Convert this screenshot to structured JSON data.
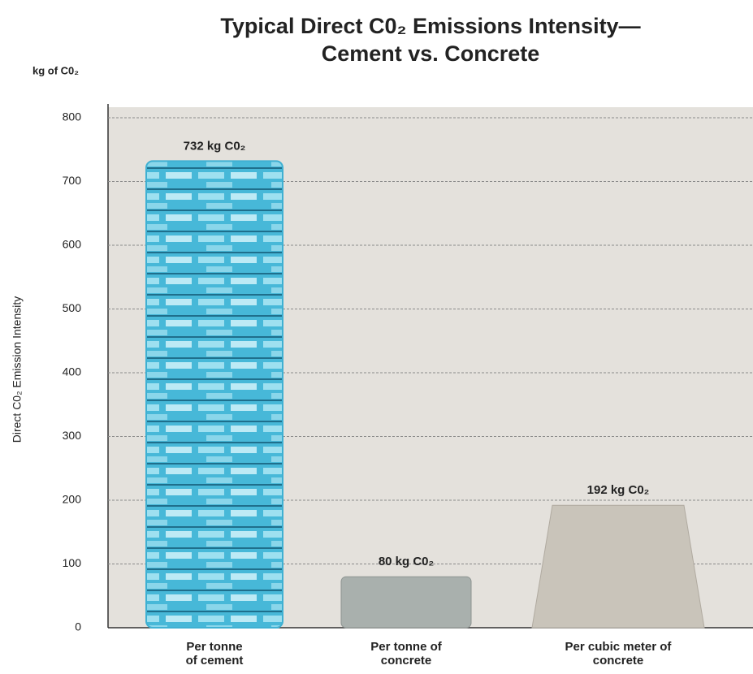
{
  "chart_data": {
    "type": "bar",
    "title": [
      "Typical Direct C0₂ Emissions Intensity—",
      "Cement vs. Concrete"
    ],
    "unit_label": "kg of C0₂",
    "y_label": "Direct C0₂ Emission Intensity",
    "categories": [
      [
        "Per tonne",
        "of cement"
      ],
      [
        "Per tonne of",
        "concrete"
      ],
      [
        "Per cubic meter of",
        "concrete"
      ]
    ],
    "values": [
      732,
      80,
      192
    ],
    "value_labels": [
      "732 kg C0₂",
      "80 kg C0₂",
      "192 kg C0₂"
    ],
    "colors": [
      "#3fb0d2",
      "#a9b0ad",
      "#c9c4ba"
    ],
    "ylim": [
      0,
      800
    ],
    "yticks": [
      0,
      100,
      200,
      300,
      400,
      500,
      600,
      700,
      800
    ],
    "grid": true
  }
}
